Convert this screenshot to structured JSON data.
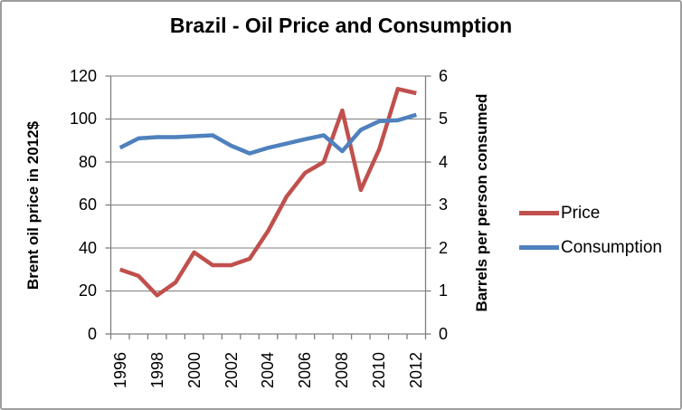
{
  "chart_data": {
    "type": "line",
    "title": "Brazil - Oil Price and Consumption",
    "x": [
      1996,
      1997,
      1998,
      1999,
      2000,
      2001,
      2002,
      2003,
      2004,
      2005,
      2006,
      2007,
      2008,
      2009,
      2010,
      2011,
      2012
    ],
    "x_tick_labels": [
      "1996",
      "1998",
      "2000",
      "2002",
      "2004",
      "2006",
      "2008",
      "2010",
      "2012"
    ],
    "left_axis": {
      "label": "Brent oil price in 2012$",
      "min": 0,
      "max": 120,
      "ticks": [
        0,
        20,
        40,
        60,
        80,
        100,
        120
      ],
      "tick_labels": [
        "120",
        "100",
        "80",
        "60",
        "40",
        "20",
        "0"
      ]
    },
    "right_axis": {
      "label": "Barrels per person consumed",
      "min": 0,
      "max": 6,
      "ticks": [
        0,
        1,
        2,
        3,
        4,
        5,
        6
      ],
      "tick_labels": [
        "6",
        "5",
        "4",
        "3",
        "2",
        "1",
        "0"
      ]
    },
    "grid": "horizontal",
    "legend_position": "right",
    "series": [
      {
        "name": "Price",
        "axis": "left",
        "color": "#C0504D",
        "values": [
          30,
          27,
          18,
          24,
          38,
          32,
          32,
          35,
          48,
          64,
          75,
          80,
          104,
          67,
          86,
          114,
          112
        ]
      },
      {
        "name": "Consumption",
        "axis": "right",
        "color": "#4F81BD",
        "values": [
          4.33,
          4.55,
          4.58,
          4.58,
          4.6,
          4.62,
          4.38,
          4.2,
          4.33,
          4.43,
          4.53,
          4.62,
          4.25,
          4.75,
          4.95,
          4.97,
          5.1
        ]
      }
    ]
  },
  "colors": {
    "gridline": "#7F7F7F",
    "axis": "#7F7F7F",
    "border": "#9E9E9E",
    "text": "#000000"
  }
}
